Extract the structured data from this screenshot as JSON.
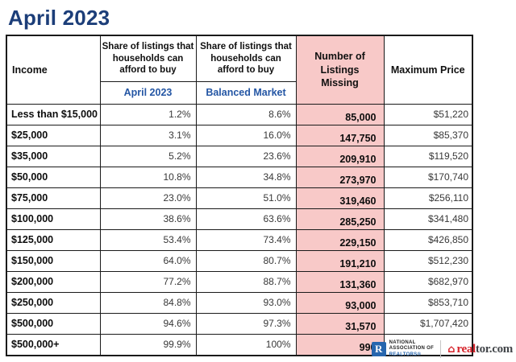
{
  "page_title": "April 2023",
  "table": {
    "header": {
      "income": "Income",
      "share_group": "Share of listings that households can afford to buy",
      "sub_april": "April 2023",
      "sub_balanced": "Balanced Market",
      "missing": "Number of Listings Missing",
      "max_price": "Maximum Price"
    },
    "rows": [
      {
        "income": "Less than $15,000",
        "april": "1.2%",
        "balanced": "8.6%",
        "missing": "85,000",
        "max_price": "$51,220"
      },
      {
        "income": "$25,000",
        "april": "3.1%",
        "balanced": "16.0%",
        "missing": "147,750",
        "max_price": "$85,370"
      },
      {
        "income": "$35,000",
        "april": "5.2%",
        "balanced": "23.6%",
        "missing": "209,910",
        "max_price": "$119,520"
      },
      {
        "income": "$50,000",
        "april": "10.8%",
        "balanced": "34.8%",
        "missing": "273,970",
        "max_price": "$170,740"
      },
      {
        "income": "$75,000",
        "april": "23.0%",
        "balanced": "51.0%",
        "missing": "319,460",
        "max_price": "$256,110"
      },
      {
        "income": "$100,000",
        "april": "38.6%",
        "balanced": "63.6%",
        "missing": "285,250",
        "max_price": "$341,480"
      },
      {
        "income": "$125,000",
        "april": "53.4%",
        "balanced": "73.4%",
        "missing": "229,150",
        "max_price": "$426,850"
      },
      {
        "income": "$150,000",
        "april": "64.0%",
        "balanced": "80.7%",
        "missing": "191,210",
        "max_price": "$512,230"
      },
      {
        "income": "$200,000",
        "april": "77.2%",
        "balanced": "88.7%",
        "missing": "131,360",
        "max_price": "$682,970"
      },
      {
        "income": "$250,000",
        "april": "84.8%",
        "balanced": "93.0%",
        "missing": "93,000",
        "max_price": "$853,710"
      },
      {
        "income": "$500,000",
        "april": "94.6%",
        "balanced": "97.3%",
        "missing": "31,570",
        "max_price": "$1,707,420"
      },
      {
        "income": "$500,000+",
        "april": "99.9%",
        "balanced": "100%",
        "missing": "990",
        "max_price": ""
      }
    ]
  },
  "footer": {
    "nar": {
      "r_glyph": "R",
      "line1": "NATIONAL",
      "line2": "ASSOCIATION OF",
      "line3": "REALTORS®"
    },
    "realtor": {
      "house_icon": "⌂",
      "red_part": "real",
      "dark_part": "tor.com"
    }
  },
  "colors": {
    "title_blue": "#1c3e79",
    "subheader_blue": "#2456a4",
    "highlight_pink": "#f8c9c8",
    "border": "#1a1a1a",
    "nar_blue": "#2766ae",
    "realtor_red": "#d6222a"
  },
  "chart_data": {
    "type": "table",
    "title": "April 2023",
    "columns": [
      "Income",
      "Share of listings that households can afford to buy — April 2023",
      "Share of listings that households can afford to buy — Balanced Market",
      "Number of Listings Missing",
      "Maximum Price"
    ],
    "rows": [
      [
        "Less than $15,000",
        "1.2%",
        "8.6%",
        "85,000",
        "$51,220"
      ],
      [
        "$25,000",
        "3.1%",
        "16.0%",
        "147,750",
        "$85,370"
      ],
      [
        "$35,000",
        "5.2%",
        "23.6%",
        "209,910",
        "$119,520"
      ],
      [
        "$50,000",
        "10.8%",
        "34.8%",
        "273,970",
        "$170,740"
      ],
      [
        "$75,000",
        "23.0%",
        "51.0%",
        "319,460",
        "$256,110"
      ],
      [
        "$100,000",
        "38.6%",
        "63.6%",
        "285,250",
        "$341,480"
      ],
      [
        "$125,000",
        "53.4%",
        "73.4%",
        "229,150",
        "$426,850"
      ],
      [
        "$150,000",
        "64.0%",
        "80.7%",
        "191,210",
        "$512,230"
      ],
      [
        "$200,000",
        "77.2%",
        "88.7%",
        "131,360",
        "$682,970"
      ],
      [
        "$250,000",
        "84.8%",
        "93.0%",
        "93,000",
        "$853,710"
      ],
      [
        "$500,000",
        "94.6%",
        "97.3%",
        "31,570",
        "$1,707,420"
      ],
      [
        "$500,000+",
        "99.9%",
        "100%",
        "990",
        ""
      ]
    ],
    "layout_hints": {
      "highlighted_column": "Number of Listings Missing",
      "highlight_color": "#f8c9c8",
      "grid": true
    }
  }
}
